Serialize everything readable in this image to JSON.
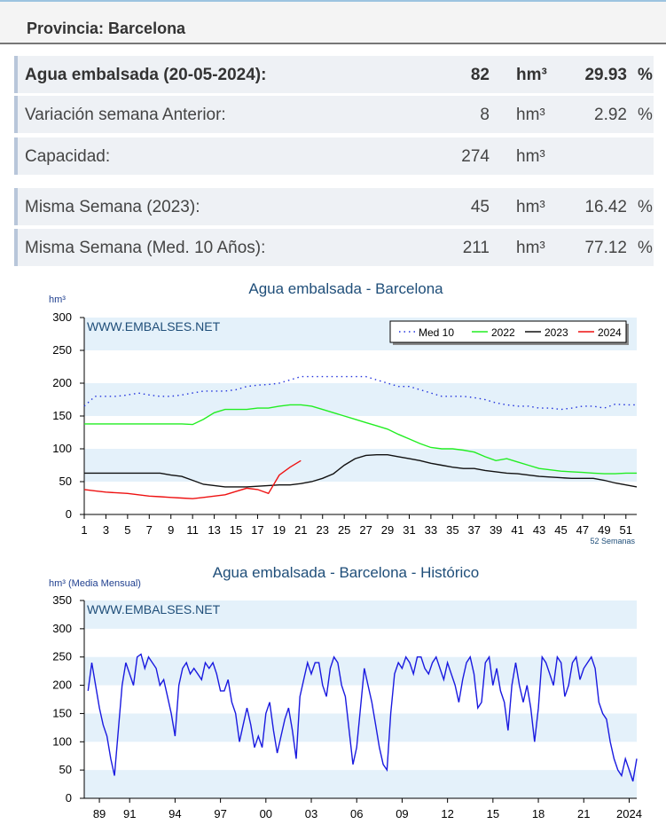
{
  "header": {
    "title": "Provincia: Barcelona"
  },
  "table": {
    "rows": [
      {
        "label": "Agua embalsada (20-05-2024):",
        "value": 82,
        "unit": "hm³",
        "percent": 29.93,
        "percent_unit": "%"
      },
      {
        "label": "Variación semana Anterior:",
        "value": 8,
        "unit": "hm³",
        "percent": 2.92,
        "percent_unit": "%"
      },
      {
        "label": "Capacidad:",
        "value": 274,
        "unit": "hm³"
      },
      {
        "label": "Misma Semana (2023):",
        "value": 45,
        "unit": "hm³",
        "percent": 16.42,
        "percent_unit": "%"
      },
      {
        "label": "Misma Semana (Med. 10 Años):",
        "value": 211,
        "unit": "hm³",
        "percent": 77.12,
        "percent_unit": "%"
      }
    ]
  },
  "chart_data": [
    {
      "type": "line",
      "title": "Agua embalsada - Barcelona",
      "y_label": "hm³",
      "x_note": "52 Semanas",
      "watermark": "WWW.EMBALSES.NET",
      "legend": "top-right",
      "bands": true,
      "x": [
        1,
        2,
        3,
        4,
        5,
        6,
        7,
        8,
        9,
        10,
        11,
        12,
        13,
        14,
        15,
        16,
        17,
        18,
        19,
        20,
        21,
        22,
        23,
        24,
        25,
        26,
        27,
        28,
        29,
        30,
        31,
        32,
        33,
        34,
        35,
        36,
        37,
        38,
        39,
        40,
        41,
        42,
        43,
        44,
        45,
        46,
        47,
        48,
        49,
        50,
        51,
        52
      ],
      "xlim": [
        1,
        52
      ],
      "xticks": [
        1,
        3,
        5,
        7,
        9,
        11,
        13,
        15,
        17,
        19,
        21,
        23,
        25,
        27,
        29,
        31,
        33,
        35,
        37,
        39,
        41,
        43,
        45,
        47,
        49,
        51
      ],
      "ylim": [
        0,
        300
      ],
      "yticks": [
        0,
        50,
        100,
        150,
        200,
        250,
        300
      ],
      "series": [
        {
          "name": "Med 10",
          "color": "#2233dd",
          "style": "dotted",
          "values": [
            165,
            180,
            180,
            180,
            182,
            185,
            182,
            180,
            180,
            182,
            185,
            188,
            188,
            188,
            190,
            195,
            197,
            198,
            200,
            205,
            210,
            210,
            210,
            210,
            210,
            210,
            210,
            205,
            200,
            195,
            195,
            190,
            185,
            180,
            180,
            180,
            178,
            175,
            170,
            167,
            165,
            165,
            162,
            162,
            160,
            162,
            165,
            165,
            162,
            168,
            167,
            167
          ]
        },
        {
          "name": "2022",
          "color": "#22ee22",
          "style": "solid",
          "values": [
            138,
            138,
            138,
            138,
            138,
            138,
            138,
            138,
            138,
            138,
            137,
            145,
            155,
            160,
            160,
            160,
            162,
            162,
            165,
            167,
            167,
            165,
            160,
            155,
            150,
            145,
            140,
            135,
            130,
            122,
            115,
            108,
            102,
            100,
            100,
            98,
            95,
            88,
            82,
            85,
            80,
            75,
            70,
            68,
            66,
            65,
            64,
            63,
            62,
            62,
            63,
            63
          ]
        },
        {
          "name": "2023",
          "color": "#111111",
          "style": "solid",
          "values": [
            63,
            63,
            63,
            63,
            63,
            63,
            63,
            63,
            60,
            58,
            52,
            46,
            44,
            42,
            42,
            42,
            43,
            44,
            45,
            45,
            47,
            50,
            55,
            62,
            75,
            85,
            90,
            91,
            91,
            88,
            85,
            82,
            78,
            75,
            72,
            70,
            70,
            67,
            65,
            63,
            62,
            60,
            58,
            57,
            56,
            55,
            55,
            55,
            52,
            48,
            45,
            42
          ]
        },
        {
          "name": "2024",
          "color": "#ee1111",
          "style": "solid",
          "values": [
            38,
            36,
            34,
            33,
            32,
            30,
            28,
            27,
            26,
            25,
            24,
            26,
            28,
            30,
            35,
            40,
            38,
            32,
            60,
            72,
            82,
            null,
            null,
            null,
            null,
            null,
            null,
            null,
            null,
            null,
            null,
            null,
            null,
            null,
            null,
            null,
            null,
            null,
            null,
            null,
            null,
            null,
            null,
            null,
            null,
            null,
            null,
            null,
            null,
            null,
            null,
            null
          ]
        }
      ]
    },
    {
      "type": "line",
      "title": "Agua embalsada - Barcelona - Histórico",
      "y_label": "hm³ (Media Mensual)",
      "watermark": "WWW.EMBALSES.NET",
      "bands": true,
      "x": [
        1988.25,
        1988.5,
        1988.75,
        1989,
        1989.25,
        1989.5,
        1989.75,
        1990,
        1990.25,
        1990.5,
        1990.75,
        1991,
        1991.25,
        1991.5,
        1991.75,
        1992,
        1992.25,
        1992.5,
        1992.75,
        1993,
        1993.25,
        1993.5,
        1993.75,
        1994,
        1994.25,
        1994.5,
        1994.75,
        1995,
        1995.25,
        1995.5,
        1995.75,
        1996,
        1996.25,
        1996.5,
        1996.75,
        1997,
        1997.25,
        1997.5,
        1997.75,
        1998,
        1998.25,
        1998.5,
        1998.75,
        1999,
        1999.25,
        1999.5,
        1999.75,
        2000,
        2000.25,
        2000.5,
        2000.75,
        2001,
        2001.25,
        2001.5,
        2001.75,
        2002,
        2002.25,
        2002.5,
        2002.75,
        2003,
        2003.25,
        2003.5,
        2003.75,
        2004,
        2004.25,
        2004.5,
        2004.75,
        2005,
        2005.25,
        2005.5,
        2005.75,
        2006,
        2006.25,
        2006.5,
        2006.75,
        2007,
        2007.25,
        2007.5,
        2007.75,
        2008,
        2008.25,
        2008.5,
        2008.75,
        2009,
        2009.25,
        2009.5,
        2009.75,
        2010,
        2010.25,
        2010.5,
        2010.75,
        2011,
        2011.25,
        2011.5,
        2011.75,
        2012,
        2012.25,
        2012.5,
        2012.75,
        2013,
        2013.25,
        2013.5,
        2013.75,
        2014,
        2014.25,
        2014.5,
        2014.75,
        2015,
        2015.25,
        2015.5,
        2015.75,
        2016,
        2016.25,
        2016.5,
        2016.75,
        2017,
        2017.25,
        2017.5,
        2017.75,
        2018,
        2018.25,
        2018.5,
        2018.75,
        2019,
        2019.25,
        2019.5,
        2019.75,
        2020,
        2020.25,
        2020.5,
        2020.75,
        2021,
        2021.25,
        2021.5,
        2021.75,
        2022,
        2022.25,
        2022.5,
        2022.75,
        2023,
        2023.25,
        2023.5,
        2023.75,
        2024,
        2024.25,
        2024.5
      ],
      "xlim": [
        1988,
        2024.5
      ],
      "xticks": [
        {
          "value": 1989,
          "label": "89"
        },
        {
          "value": 1991,
          "label": "91"
        },
        {
          "value": 1994,
          "label": "94"
        },
        {
          "value": 1997,
          "label": "97"
        },
        {
          "value": 2000,
          "label": "00"
        },
        {
          "value": 2003,
          "label": "03"
        },
        {
          "value": 2006,
          "label": "06"
        },
        {
          "value": 2009,
          "label": "09"
        },
        {
          "value": 2012,
          "label": "12"
        },
        {
          "value": 2015,
          "label": "15"
        },
        {
          "value": 2018,
          "label": "18"
        },
        {
          "value": 2021,
          "label": "21"
        },
        2024
      ],
      "ylim": [
        0,
        350
      ],
      "yticks": [
        0,
        50,
        100,
        150,
        200,
        250,
        300,
        350
      ],
      "series": [
        {
          "color": "#1a1ae0",
          "style": "solid",
          "values": [
            190,
            240,
            200,
            160,
            130,
            110,
            70,
            40,
            120,
            200,
            240,
            220,
            200,
            250,
            255,
            230,
            250,
            240,
            230,
            200,
            210,
            180,
            150,
            110,
            200,
            230,
            240,
            220,
            230,
            220,
            210,
            240,
            230,
            240,
            220,
            190,
            190,
            210,
            170,
            150,
            100,
            130,
            160,
            130,
            90,
            110,
            90,
            150,
            170,
            120,
            80,
            110,
            140,
            160,
            120,
            70,
            180,
            210,
            240,
            220,
            240,
            240,
            200,
            180,
            230,
            250,
            240,
            200,
            180,
            120,
            60,
            90,
            160,
            230,
            200,
            170,
            130,
            90,
            60,
            50,
            150,
            220,
            240,
            230,
            250,
            240,
            220,
            250,
            250,
            230,
            220,
            240,
            250,
            230,
            210,
            240,
            220,
            200,
            170,
            210,
            240,
            250,
            220,
            160,
            170,
            240,
            250,
            200,
            230,
            190,
            170,
            120,
            200,
            240,
            200,
            170,
            200,
            160,
            100,
            160,
            250,
            240,
            220,
            200,
            250,
            240,
            180,
            200,
            240,
            250,
            210,
            230,
            240,
            250,
            230,
            170,
            150,
            140,
            100,
            70,
            50,
            40,
            70,
            50,
            30,
            70
          ]
        }
      ]
    }
  ]
}
